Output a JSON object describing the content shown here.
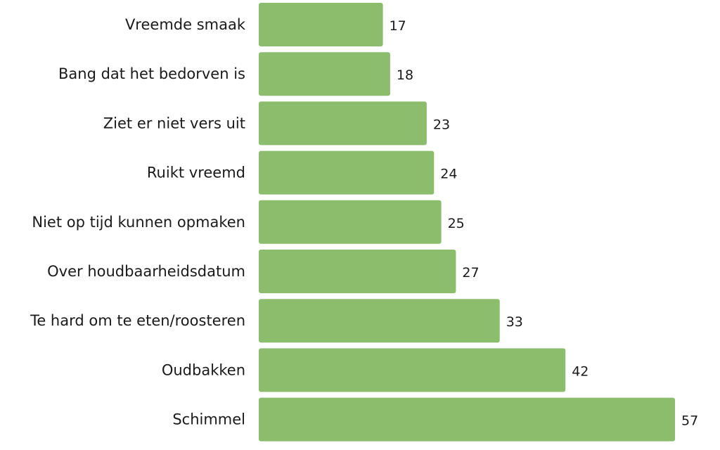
{
  "chart_data": {
    "type": "bar",
    "orientation": "horizontal",
    "categories": [
      "Vreemde smaak",
      "Bang dat het bedorven is",
      "Ziet er niet vers uit",
      "Ruikt vreemd",
      "Niet op tijd kunnen opmaken",
      "Over houdbaarheidsdatum",
      "Te hard om te eten/roosteren",
      "Oudbakken",
      "Schimmel"
    ],
    "values": [
      17,
      18,
      23,
      24,
      25,
      27,
      33,
      42,
      57
    ],
    "value_labels": [
      "17",
      "18",
      "23",
      "24",
      "25",
      "27",
      "33",
      "42",
      "57"
    ],
    "xlim": [
      0,
      57
    ],
    "grid": false,
    "legend": "none",
    "bar_color": "#8cbd6c"
  }
}
